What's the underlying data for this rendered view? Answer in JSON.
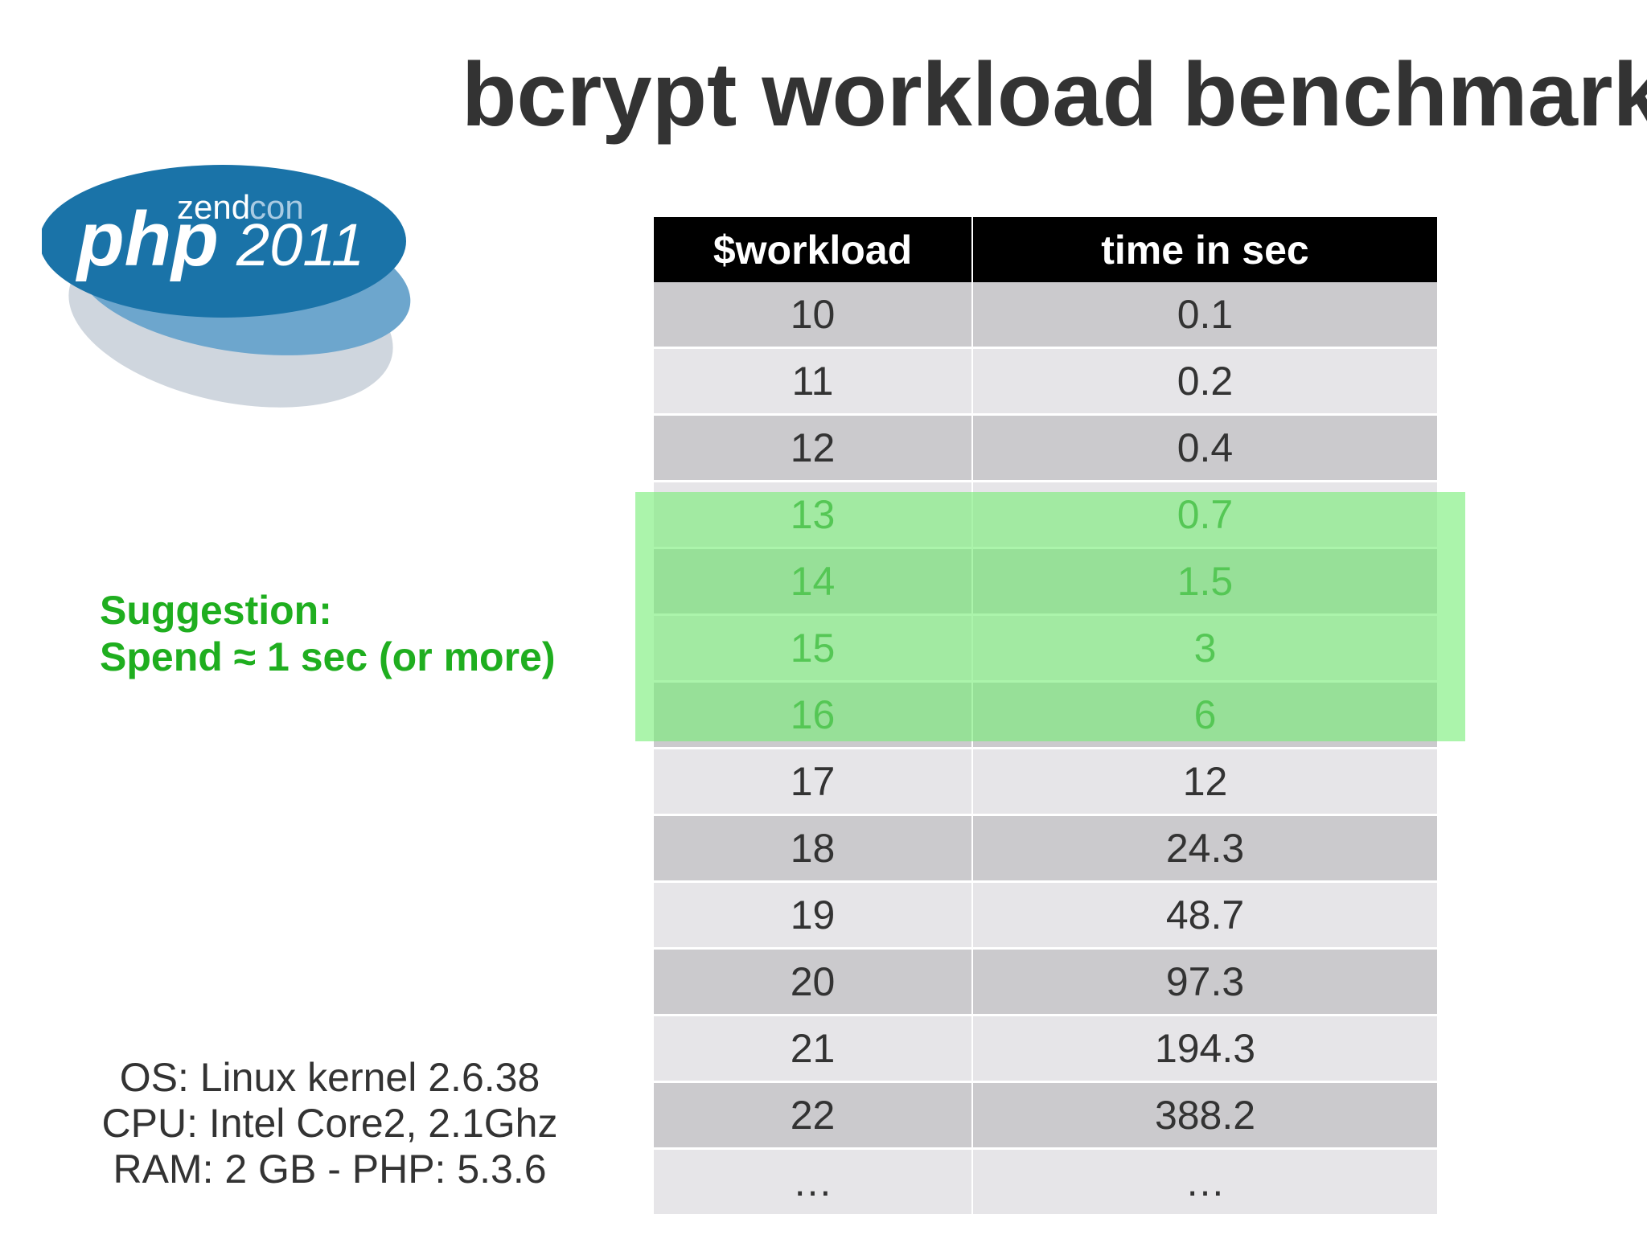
{
  "slide": {
    "title": "bcrypt workload benchmark"
  },
  "logo": {
    "line1": "zendcon",
    "line1_part_a": "zend",
    "line1_part_b": "con",
    "line2_php": "php",
    "line2_year": "2011",
    "colors": {
      "primary": "#1a73a8",
      "secondary": "#5a9bc7",
      "shadow": "#cfd6de"
    }
  },
  "suggestion": {
    "line1": "Suggestion:",
    "line2": "Spend ≈ 1 sec (or more)",
    "color": "#1fae1f"
  },
  "specs": {
    "os": "OS: Linux kernel 2.6.38",
    "cpu": "CPU: Intel Core2, 2.1Ghz",
    "ram_php": "RAM: 2 GB - PHP: 5.3.6"
  },
  "table": {
    "headers": [
      "$workload",
      "time in sec"
    ],
    "rows": [
      [
        "10",
        "0.1"
      ],
      [
        "11",
        "0.2"
      ],
      [
        "12",
        "0.4"
      ],
      [
        "13",
        "0.7"
      ],
      [
        "14",
        "1.5"
      ],
      [
        "15",
        "3"
      ],
      [
        "16",
        "6"
      ],
      [
        "17",
        "12"
      ],
      [
        "18",
        "24.3"
      ],
      [
        "19",
        "48.7"
      ],
      [
        "20",
        "97.3"
      ],
      [
        "21",
        "194.3"
      ],
      [
        "22",
        "388.2"
      ],
      [
        "…",
        "…"
      ]
    ],
    "highlight_color": "#78ee78"
  }
}
